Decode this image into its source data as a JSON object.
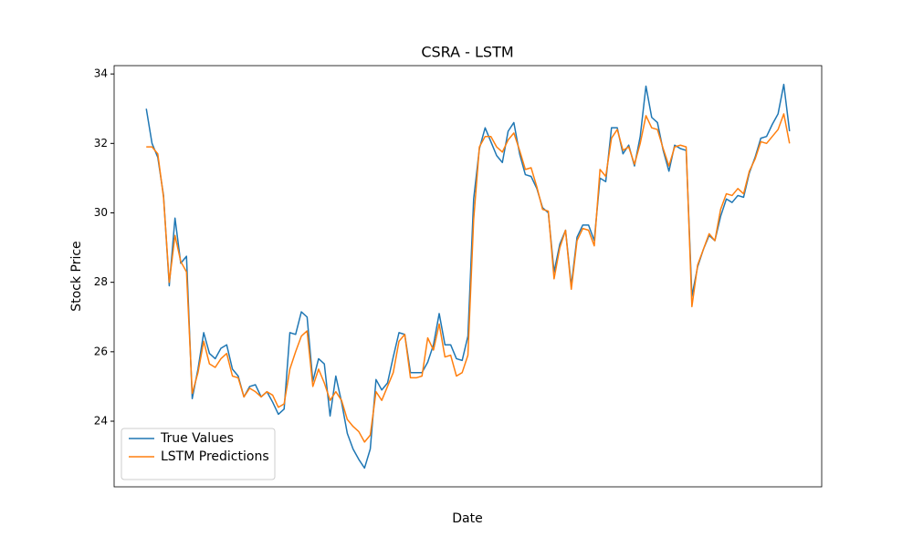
{
  "chart_data": {
    "type": "line",
    "title": "CSRA - LSTM",
    "x_label": "Date",
    "y_label": "Stock Price",
    "categories": [
      null,
      null,
      null,
      null,
      null,
      null,
      null,
      null,
      null,
      null,
      null,
      null,
      null,
      null,
      null,
      null,
      null,
      null,
      null,
      null,
      null,
      null,
      null,
      null,
      null,
      null,
      null,
      null,
      null,
      null,
      null,
      null,
      null,
      null,
      null,
      null,
      null,
      null,
      null,
      null,
      null,
      null,
      null,
      null,
      null,
      null,
      null,
      null,
      null,
      null,
      null,
      null,
      null,
      null,
      null,
      null,
      null,
      null,
      null,
      null,
      null,
      null,
      null,
      null,
      null,
      null,
      null,
      null,
      null,
      null,
      null,
      null,
      null,
      null,
      null,
      null,
      null,
      null,
      null,
      null,
      null,
      null,
      null,
      null,
      null,
      null,
      null,
      null,
      null,
      null,
      null,
      null,
      null,
      null,
      null,
      null,
      null,
      null,
      null,
      null,
      null,
      null,
      null,
      null,
      null,
      null,
      null,
      null,
      null,
      null,
      null,
      null,
      null
    ],
    "series": [
      {
        "name": "True Values",
        "color": "#1f77b4",
        "values": [
          33.0,
          32.0,
          31.6,
          30.5,
          27.9,
          29.85,
          28.55,
          28.75,
          24.65,
          25.5,
          26.55,
          25.95,
          25.8,
          26.1,
          26.2,
          25.5,
          25.3,
          24.7,
          25.0,
          25.05,
          24.7,
          24.85,
          24.55,
          24.2,
          24.35,
          26.55,
          26.5,
          27.15,
          27.0,
          25.15,
          25.8,
          25.65,
          24.15,
          25.3,
          24.55,
          23.65,
          23.2,
          22.9,
          22.65,
          23.2,
          25.2,
          24.9,
          25.1,
          25.85,
          26.55,
          26.5,
          25.4,
          25.4,
          25.4,
          25.7,
          26.2,
          27.1,
          26.2,
          26.2,
          25.8,
          25.75,
          26.45,
          30.4,
          31.85,
          32.45,
          32.05,
          31.65,
          31.45,
          32.35,
          32.6,
          31.7,
          31.1,
          31.05,
          30.7,
          30.15,
          30.0,
          28.3,
          29.1,
          29.5,
          27.9,
          29.3,
          29.65,
          29.65,
          29.2,
          31.0,
          30.9,
          32.45,
          32.45,
          31.7,
          31.95,
          31.35,
          32.2,
          33.65,
          32.75,
          32.6,
          31.8,
          31.2,
          31.95,
          31.85,
          31.8,
          27.6,
          28.45,
          28.95,
          29.35,
          29.2,
          29.9,
          30.4,
          30.3,
          30.5,
          30.45,
          31.15,
          31.6,
          32.15,
          32.2,
          32.55,
          32.85,
          33.7,
          32.35
        ]
      },
      {
        "name": "LSTM Predictions",
        "color": "#ff7f0e",
        "values": [
          31.9,
          31.9,
          31.7,
          30.45,
          28.0,
          29.35,
          28.6,
          28.3,
          24.8,
          25.4,
          26.3,
          25.65,
          25.55,
          25.8,
          25.95,
          25.3,
          25.25,
          24.7,
          24.95,
          24.85,
          24.7,
          24.85,
          24.75,
          24.4,
          24.5,
          25.5,
          26.0,
          26.45,
          26.6,
          25.0,
          25.5,
          25.1,
          24.6,
          24.85,
          24.6,
          24.05,
          23.85,
          23.7,
          23.4,
          23.6,
          24.85,
          24.6,
          25.0,
          25.4,
          26.3,
          26.5,
          25.25,
          25.25,
          25.3,
          26.4,
          26.05,
          26.8,
          25.85,
          25.9,
          25.3,
          25.4,
          25.9,
          29.8,
          31.9,
          32.2,
          32.2,
          31.9,
          31.75,
          32.1,
          32.3,
          31.8,
          31.25,
          31.3,
          30.75,
          30.1,
          30.05,
          28.1,
          29.0,
          29.5,
          27.8,
          29.2,
          29.55,
          29.5,
          29.05,
          31.25,
          31.05,
          32.15,
          32.4,
          31.8,
          31.9,
          31.4,
          32.0,
          32.8,
          32.45,
          32.4,
          31.85,
          31.35,
          31.9,
          31.95,
          31.9,
          27.3,
          28.5,
          28.95,
          29.4,
          29.2,
          30.1,
          30.55,
          30.5,
          30.7,
          30.55,
          31.2,
          31.55,
          32.05,
          32.0,
          32.2,
          32.4,
          32.85,
          32.0
        ]
      }
    ],
    "ylim": [
      22.11,
      34.24
    ],
    "yticks": [
      24,
      26,
      28,
      30,
      32,
      34
    ],
    "legend": "lower left"
  }
}
